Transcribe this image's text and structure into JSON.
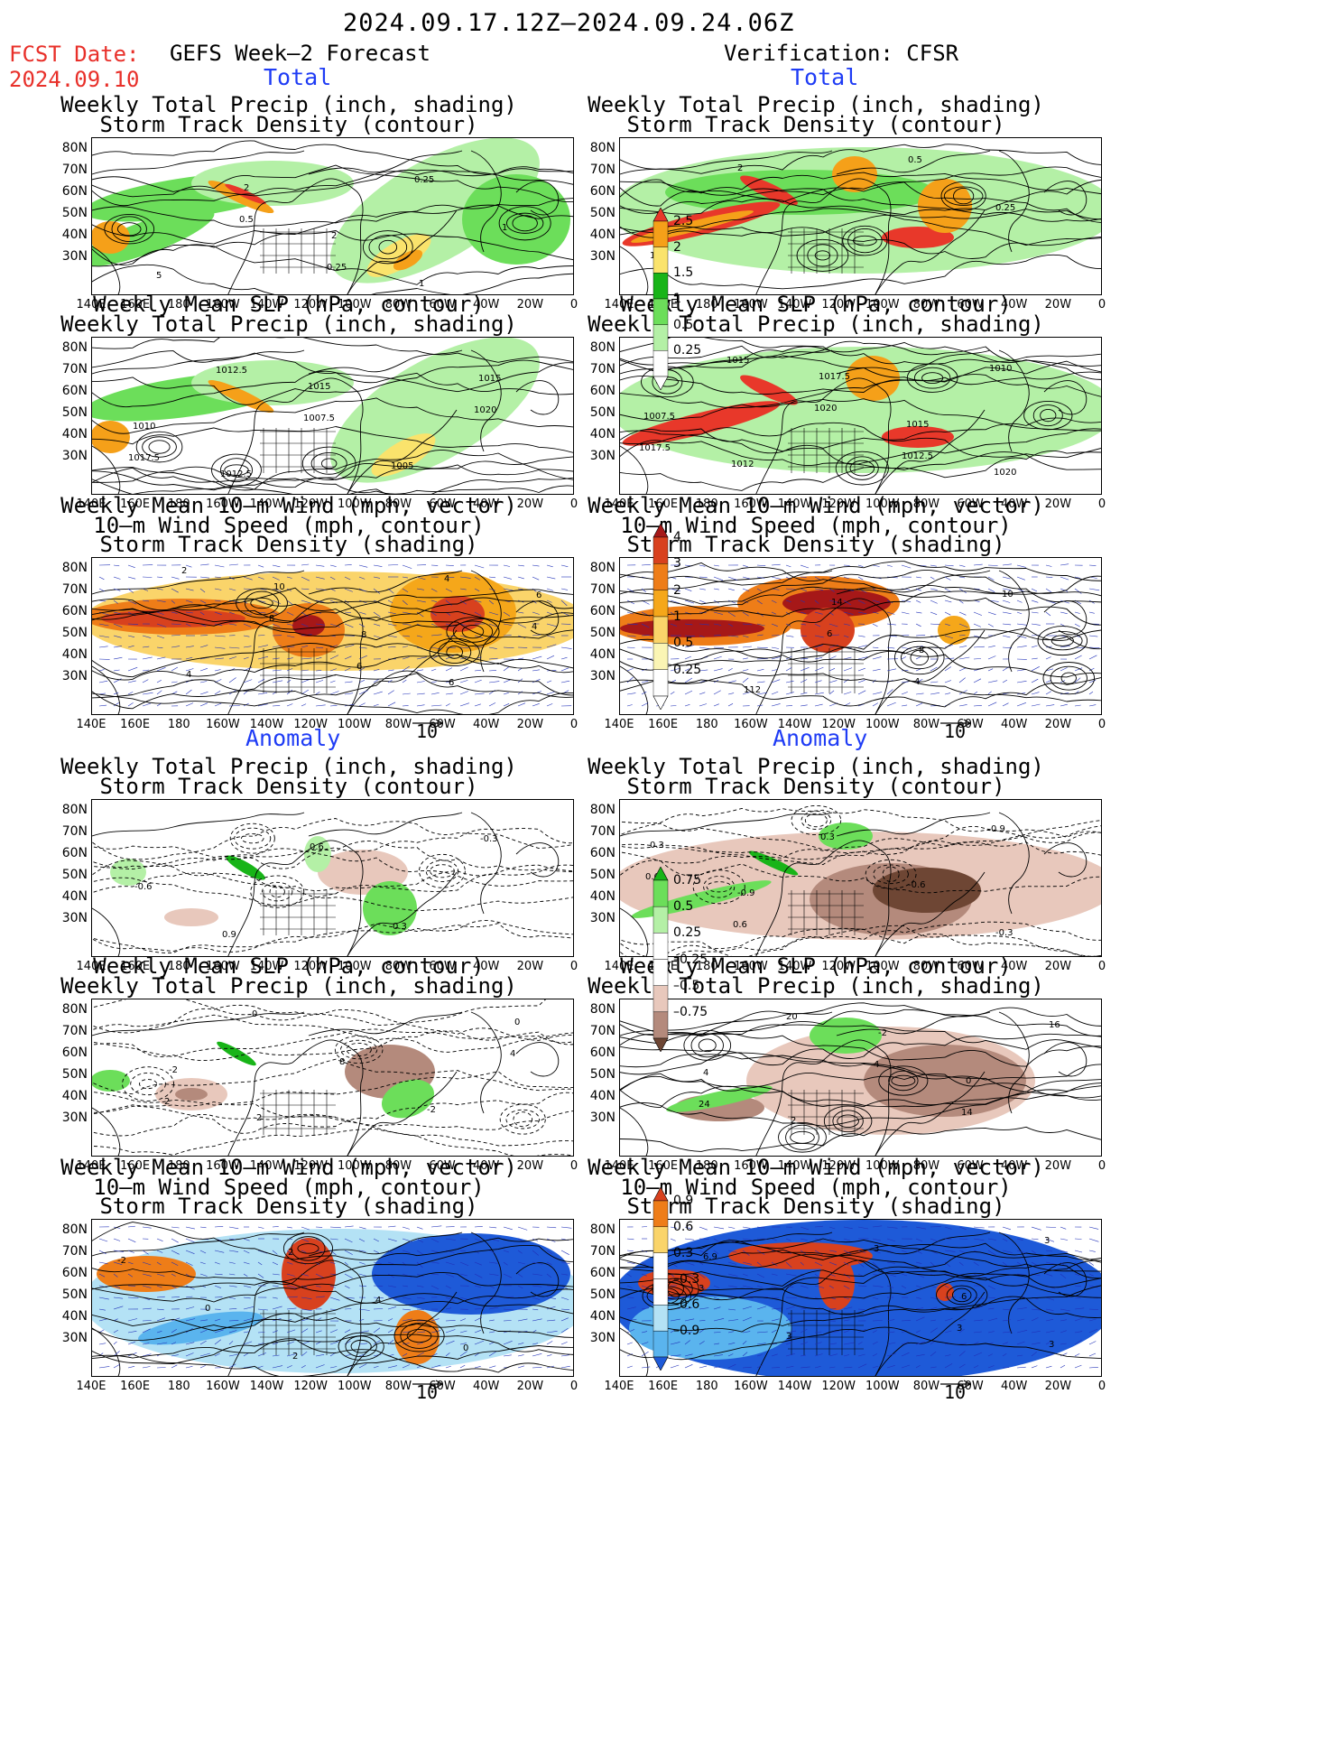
{
  "header": {
    "title": "2024.09.17.12Z–2024.09.24.06Z",
    "fcst_label": "FCST Date:",
    "fcst_date": "2024.09.10",
    "left_heading": "GEFS Week–2 Forecast",
    "right_heading": "Verification: CFSR",
    "total_label": "Total",
    "anomaly_label": "Anomaly"
  },
  "panels": {
    "p1": [
      "Weekly Total Precip (inch, shading)",
      "Storm Track Density (contour)"
    ],
    "p2": [
      "Weekly Mean SLP (hPa, contour)",
      "Weekly Total Precip (inch, shading)"
    ],
    "p3": [
      "Weekly Mean 10–m Wind (mph, vector)",
      "10–m Wind Speed (mph, contour)",
      "Storm Track Density (shading)"
    ]
  },
  "axes": {
    "lat_labels": [
      "80N",
      "70N",
      "60N",
      "50N",
      "40N",
      "30N"
    ],
    "lon_labels": [
      "140E",
      "160E",
      "180",
      "160W",
      "140W",
      "120W",
      "100W",
      "80W",
      "60W",
      "40W",
      "20W",
      "0"
    ]
  },
  "vector_ref": "10",
  "colorbars": {
    "precip_total": [
      "0.25",
      "0.5",
      "1",
      "1.5",
      "2",
      "2.5"
    ],
    "density_total": [
      "0.25",
      "0.5",
      "1",
      "2",
      "3",
      "4"
    ],
    "precip_anom": [
      "0.75",
      "0.5",
      "0.25",
      "–0.25",
      "–0.5",
      "–0.75"
    ],
    "density_anom": [
      "0.9",
      "0.6",
      "0.3",
      "–0.3",
      "–0.6",
      "–0.9"
    ]
  },
  "contour_labels": {
    "fc_precip": [
      "0.5",
      "0.25",
      "0.25",
      "1",
      "5",
      "2",
      "2",
      "1"
    ],
    "fc_slp": [
      "1020",
      "1017.5",
      "1012.5",
      "1007.5",
      "1005",
      "1015",
      "1010",
      "1012.5",
      "1015"
    ],
    "fc_wind": [
      "2",
      "8",
      "6",
      "4",
      "4",
      "4",
      "10",
      "8",
      "6",
      "6"
    ],
    "ver_precip": [
      "0.5",
      "0.25",
      "1.5",
      "2"
    ],
    "ver_slp": [
      "1017.5",
      "1015",
      "1020",
      "1012.5",
      "1010",
      "1007.5",
      "1012",
      "1017.5",
      "1015",
      "1020"
    ],
    "ver_wind": [
      "6",
      "4",
      "10",
      "14",
      "112",
      "14",
      "8"
    ],
    "fc_precip_anom": [
      "0.3",
      "-0.3",
      "-0.6",
      "0.9",
      "0.6"
    ],
    "fc_slp_anom": [
      "4",
      "2",
      "0",
      "8",
      "-2",
      "0",
      "-2",
      "2"
    ],
    "fc_wind_anom": [
      "2",
      "4",
      "0",
      "-2",
      "0",
      "2"
    ],
    "ver_precip_anom": [
      "0.9",
      "0.6",
      "0.6",
      "0.3",
      "-0.6",
      "-0.3",
      "0.3",
      "-0.9"
    ],
    "ver_slp_anom": [
      "24",
      "20",
      "4",
      "14",
      "16",
      "4",
      "2",
      "-2",
      "0"
    ],
    "ver_wind_anom": [
      "3",
      "3",
      "3",
      "3",
      "3",
      "6",
      "3",
      "6.9"
    ]
  },
  "colors": {
    "precip": [
      "#b4f0a6",
      "#6cde5a",
      "#18b418",
      "#fae36c",
      "#f5a019",
      "#e8382a"
    ],
    "density": [
      "#fbf5b4",
      "#fad46a",
      "#f5a71a",
      "#ee7d18",
      "#d8411e",
      "#a61818"
    ],
    "anom_brown": [
      "#e8c8bc",
      "#b48a7c",
      "#6e4634"
    ],
    "anom_blue": [
      "#b4e2f5",
      "#5ab4ee",
      "#1e5ad8"
    ]
  }
}
